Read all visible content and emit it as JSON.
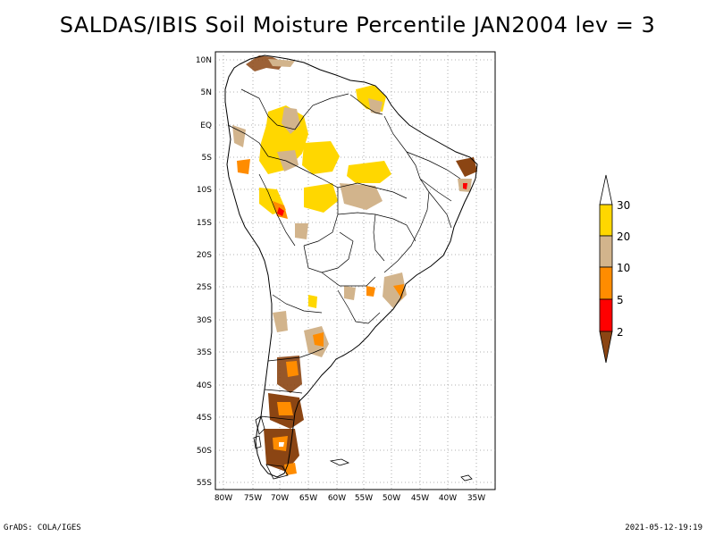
{
  "title": "SALDAS/IBIS Soil Moisture Percentile JAN2004 lev = 3",
  "footer": {
    "left": "GrADS: COLA/IGES",
    "right": "2021-05-12-19:19"
  },
  "map": {
    "region": "South America",
    "lon_range": [
      -81,
      -33
    ],
    "lat_range": [
      -56,
      11
    ],
    "gridlines": "dotted",
    "lon_ticks": [
      "80W",
      "75W",
      "70W",
      "65W",
      "60W",
      "55W",
      "50W",
      "45W",
      "40W",
      "35W"
    ],
    "lat_ticks": [
      "10N",
      "5N",
      "EQ",
      "5S",
      "10S",
      "15S",
      "20S",
      "25S",
      "30S",
      "35S",
      "40S",
      "45S",
      "50S",
      "55S"
    ]
  },
  "colorbar": {
    "labels": [
      "30",
      "20",
      "10",
      "5",
      "2"
    ],
    "colors": {
      "above_30": "#ffffff",
      "20_30": "#ffd700",
      "10_20": "#d2b48c",
      "5_10": "#ff8c00",
      "2_5": "#ff0000",
      "below_2": "#8b4513"
    }
  }
}
